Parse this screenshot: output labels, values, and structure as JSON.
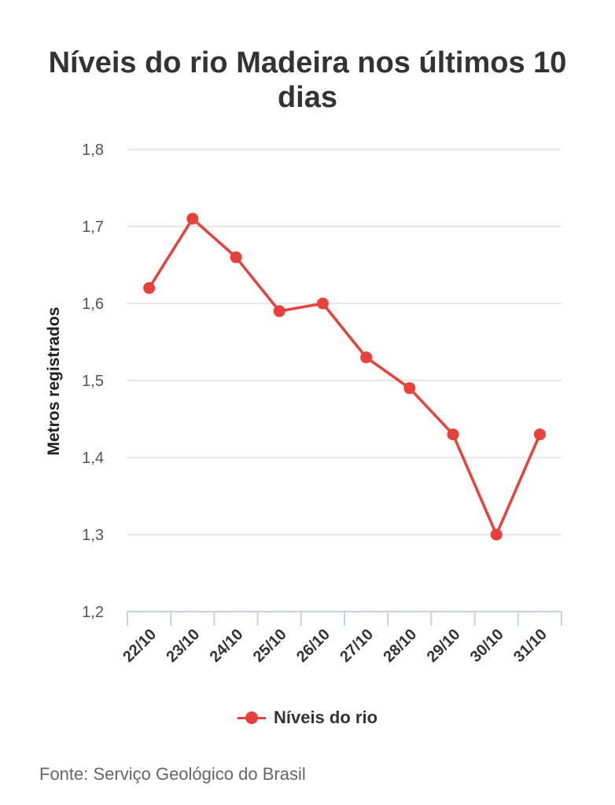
{
  "chart_data": {
    "type": "line",
    "title": "Níveis do rio Madeira nos últimos 10 dias",
    "xlabel": "",
    "ylabel": "Metros registrados",
    "categories": [
      "22/10",
      "23/10",
      "24/10",
      "25/10",
      "26/10",
      "27/10",
      "28/10",
      "29/10",
      "30/10",
      "31/10"
    ],
    "series": [
      {
        "name": "Níveis do rio",
        "values": [
          1.62,
          1.71,
          1.66,
          1.59,
          1.6,
          1.53,
          1.49,
          1.43,
          1.3,
          1.43
        ]
      }
    ],
    "ylim": [
      1.2,
      1.8
    ],
    "yticks": [
      "1,2",
      "1,3",
      "1,4",
      "1,5",
      "1,6",
      "1,7",
      "1,8"
    ],
    "grid": true,
    "legend_position": "bottom-center",
    "colors": {
      "series": "#e8413b",
      "grid": "#e0e0e0",
      "axis": "#c5d3e8"
    }
  },
  "footer": {
    "source": "Fonte: Serviço Geológico do Brasil"
  }
}
